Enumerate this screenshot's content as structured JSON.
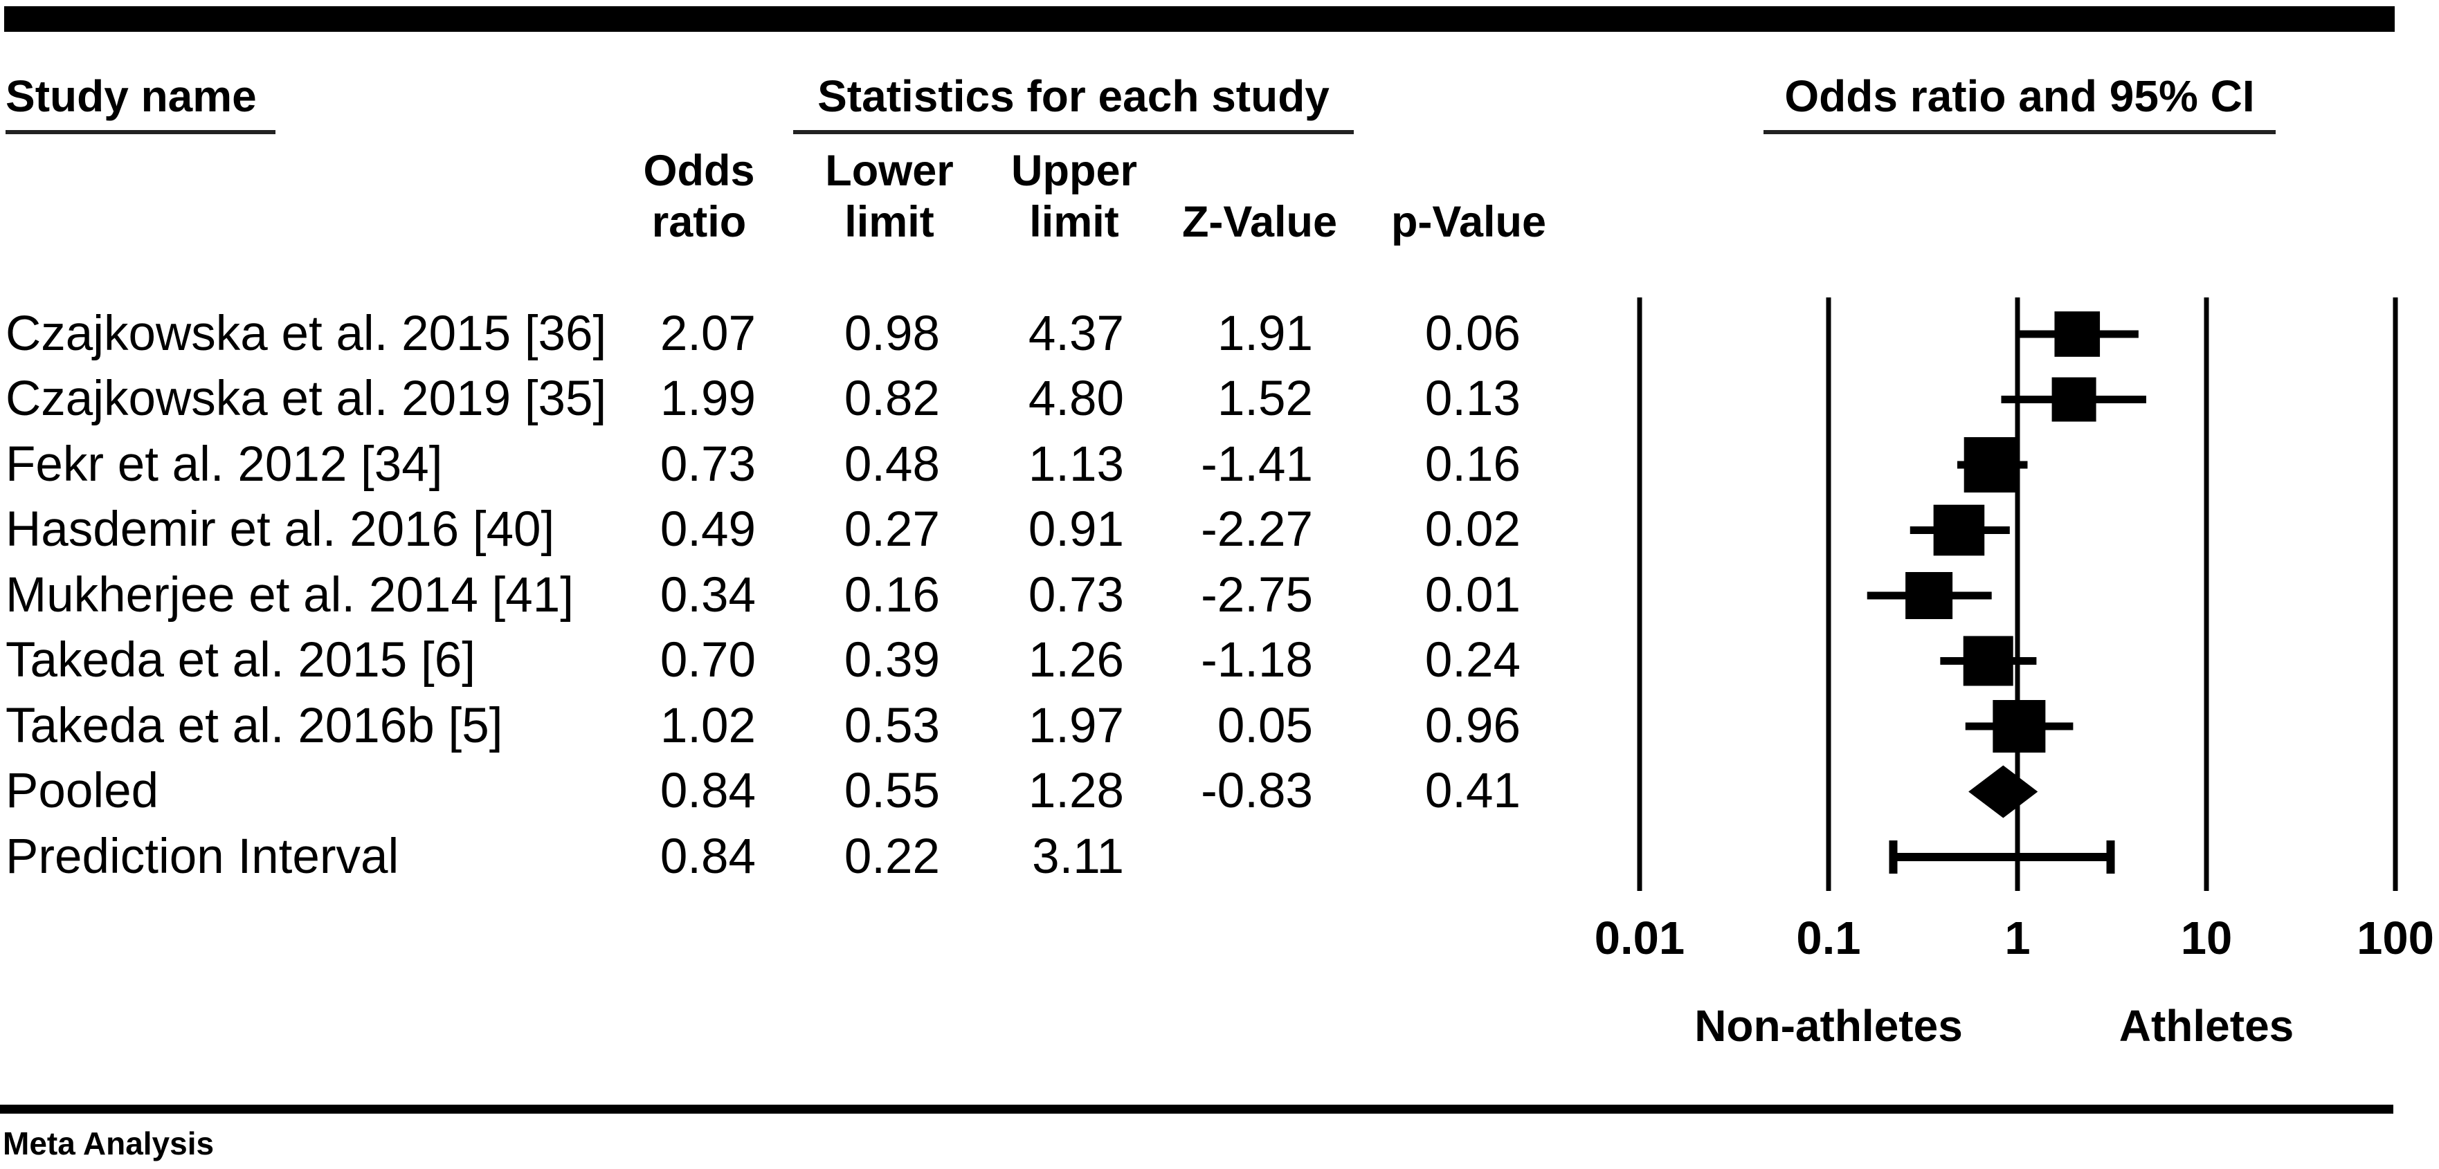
{
  "figure": {
    "title_left": "Study name",
    "title_center": "Statistics for each study",
    "title_right": "Odds ratio and 95% CI",
    "footer": "Meta Analysis",
    "colors": {
      "ink": "#000000",
      "background": "#ffffff",
      "underline": "#222222"
    }
  },
  "table": {
    "column_headers": {
      "odds": "Odds\nratio",
      "lower": "Lower\nlimit",
      "upper": "Upper\nlimit",
      "z": "Z-Value",
      "p": "p-Value"
    },
    "rows": [
      {
        "study": "Czajkowska et al. 2015 [36]",
        "or": "2.07",
        "lower": "0.98",
        "upper": "4.37",
        "z": "1.91",
        "p": "0.06"
      },
      {
        "study": "Czajkowska et al. 2019 [35]",
        "or": "1.99",
        "lower": "0.82",
        "upper": "4.80",
        "z": "1.52",
        "p": "0.13"
      },
      {
        "study": "Fekr et al. 2012 [34]",
        "or": "0.73",
        "lower": "0.48",
        "upper": "1.13",
        "z": "-1.41",
        "p": "0.16"
      },
      {
        "study": "Hasdemir et al. 2016 [40]",
        "or": "0.49",
        "lower": "0.27",
        "upper": "0.91",
        "z": "-2.27",
        "p": "0.02"
      },
      {
        "study": "Mukherjee et al. 2014 [41]",
        "or": "0.34",
        "lower": "0.16",
        "upper": "0.73",
        "z": "-2.75",
        "p": "0.01"
      },
      {
        "study": "Takeda et al. 2015 [6]",
        "or": "0.70",
        "lower": "0.39",
        "upper": "1.26",
        "z": "-1.18",
        "p": "0.24"
      },
      {
        "study": "Takeda et al. 2016b [5]",
        "or": "1.02",
        "lower": "0.53",
        "upper": "1.97",
        "z": "0.05",
        "p": "0.96"
      },
      {
        "study": "Pooled",
        "or": "0.84",
        "lower": "0.55",
        "upper": "1.28",
        "z": "-0.83",
        "p": "0.41"
      },
      {
        "study": "Prediction Interval",
        "or": "0.84",
        "lower": "0.22",
        "upper": "3.11",
        "z": "",
        "p": ""
      }
    ]
  },
  "chart_data": {
    "type": "forest",
    "x_scale": "log10",
    "x_range": [
      0.01,
      100
    ],
    "grid": "vertical-reference-lines",
    "ticks": [
      {
        "label": "0.01",
        "value": 0.01
      },
      {
        "label": "0.1",
        "value": 0.1
      },
      {
        "label": "1",
        "value": 1
      },
      {
        "label": "10",
        "value": 10
      },
      {
        "label": "100",
        "value": 100
      }
    ],
    "axis_labels": {
      "left": "Non-athletes",
      "right": "Athletes"
    },
    "rows": [
      {
        "label": "Czajkowska et al. 2015 [36]",
        "marker": "square",
        "or": 2.07,
        "lower": 0.98,
        "upper": 4.37,
        "weight": 0.82
      },
      {
        "label": "Czajkowska et al. 2019 [35]",
        "marker": "square",
        "or": 1.99,
        "lower": 0.82,
        "upper": 4.8,
        "weight": 0.8
      },
      {
        "label": "Fekr et al. 2012 [34]",
        "marker": "square",
        "or": 0.73,
        "lower": 0.48,
        "upper": 1.13,
        "weight": 1.0
      },
      {
        "label": "Hasdemir et al. 2016 [40]",
        "marker": "square",
        "or": 0.49,
        "lower": 0.27,
        "upper": 0.91,
        "weight": 0.92
      },
      {
        "label": "Mukherjee et al. 2014 [41]",
        "marker": "square",
        "or": 0.34,
        "lower": 0.16,
        "upper": 0.73,
        "weight": 0.85
      },
      {
        "label": "Takeda et al. 2015 [6]",
        "marker": "square",
        "or": 0.7,
        "lower": 0.39,
        "upper": 1.26,
        "weight": 0.9
      },
      {
        "label": "Takeda et al. 2016b [5]",
        "marker": "square",
        "or": 1.02,
        "lower": 0.53,
        "upper": 1.97,
        "weight": 0.95
      },
      {
        "label": "Pooled",
        "marker": "diamond",
        "or": 0.84,
        "lower": 0.55,
        "upper": 1.28
      },
      {
        "label": "Prediction Interval",
        "marker": "interval",
        "or": 0.84,
        "lower": 0.22,
        "upper": 3.11
      }
    ]
  }
}
